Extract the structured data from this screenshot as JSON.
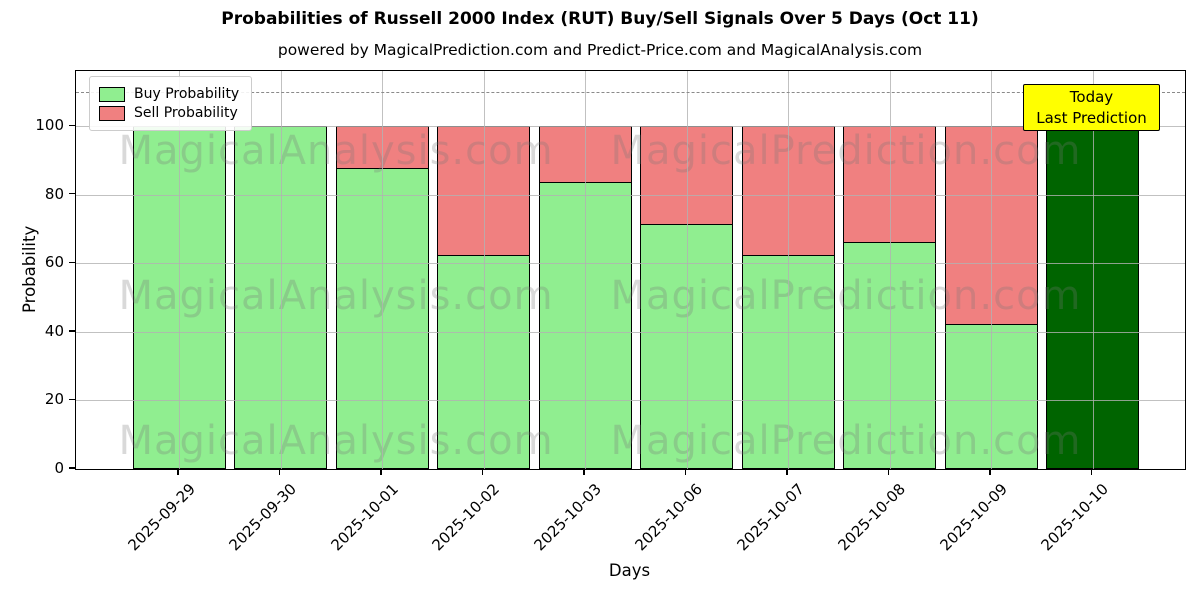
{
  "header": {
    "title": "Probabilities of Russell 2000 Index (RUT) Buy/Sell Signals Over 5 Days (Oct 11)",
    "subtitle": "powered by MagicalPrediction.com and Predict-Price.com and MagicalAnalysis.com"
  },
  "axes": {
    "xlabel": "Days",
    "ylabel": "Probability",
    "yticks": [
      0,
      20,
      40,
      60,
      80,
      100
    ]
  },
  "annotation": {
    "line1": "Today",
    "line2": "Last Prediction",
    "bg_color": "#ffff00"
  },
  "watermarks": {
    "texts": [
      "MagicalAnalysis.com",
      "MagicalPrediction.com"
    ]
  },
  "chart_data": {
    "type": "bar",
    "stacked": true,
    "title": "Probabilities of Russell 2000 Index (RUT) Buy/Sell Signals Over 5 Days (Oct 11)",
    "xlabel": "Days",
    "ylabel": "Probability",
    "categories": [
      "2025-09-29",
      "2025-09-30",
      "2025-10-01",
      "2025-10-02",
      "2025-10-03",
      "2025-10-06",
      "2025-10-07",
      "2025-10-08",
      "2025-10-09",
      "2025-10-10"
    ],
    "series": [
      {
        "name": "Buy Probability",
        "color": "#90EE90",
        "values": [
          100,
          100,
          88,
          62.5,
          84,
          71.5,
          62.5,
          66.5,
          42.5,
          100
        ]
      },
      {
        "name": "Sell Probability",
        "color": "#F08080",
        "values": [
          0,
          0,
          12,
          37.5,
          16,
          28.5,
          37.5,
          33.5,
          57.5,
          0
        ]
      }
    ],
    "today_bar": {
      "index": 9,
      "color": "#006400",
      "value": 100,
      "label": "Today Last Prediction"
    },
    "ylim": [
      0,
      116.1
    ],
    "dashed_line_y": 110,
    "grid": true,
    "legend_position": "upper left",
    "bar_edge_color": "#000000"
  }
}
